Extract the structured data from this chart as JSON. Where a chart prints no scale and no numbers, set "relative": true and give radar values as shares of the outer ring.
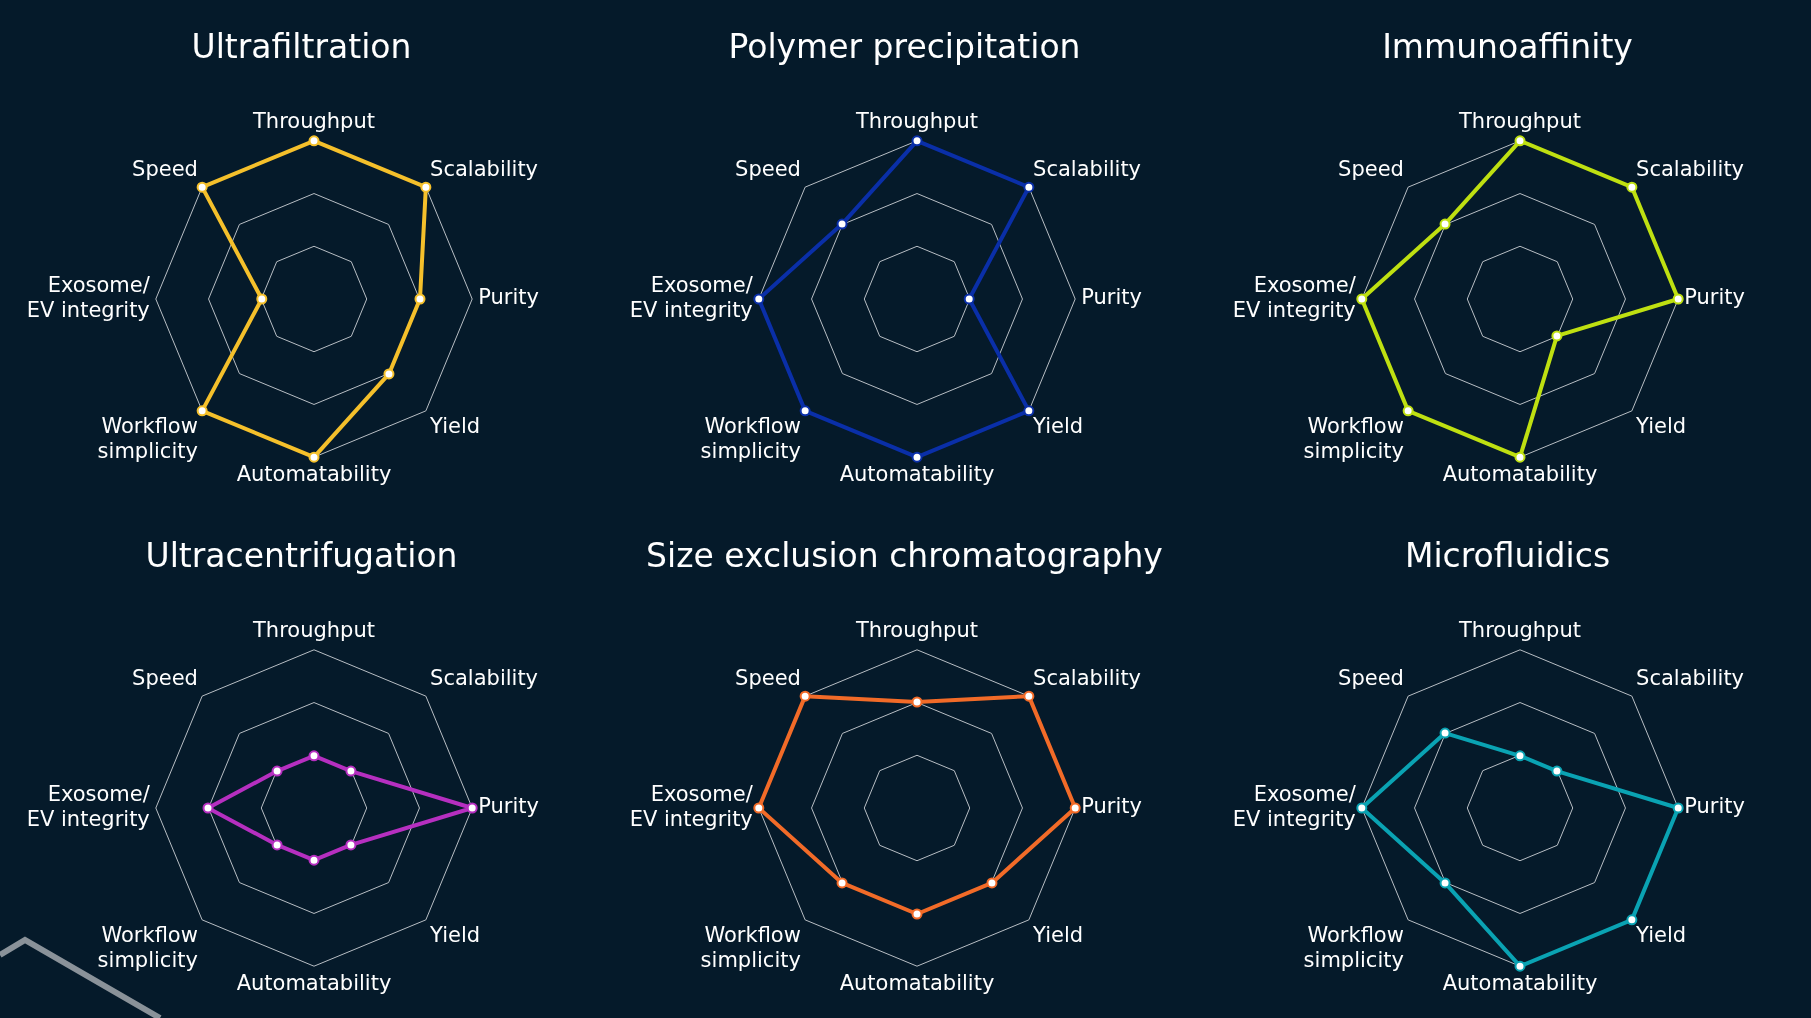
{
  "chart_data": [
    {
      "type": "radar",
      "title": "Ultrafiltration",
      "categories": [
        "Throughput",
        "Scalability",
        "Purity",
        "Yield",
        "Automatability",
        "Workflow simplicity",
        "Exosome/ EV integrity",
        "Speed"
      ],
      "relative": true,
      "grid": true,
      "legend": false,
      "marker": "circle",
      "line_style": "solid",
      "series": [
        {
          "color": "#f5c02b",
          "values": [
            1,
            1,
            0.67,
            0.67,
            1,
            1,
            0.33,
            1
          ]
        }
      ]
    },
    {
      "type": "radar",
      "title": "Polymer precipitation",
      "categories": [
        "Throughput",
        "Scalability",
        "Purity",
        "Yield",
        "Automatability",
        "Workflow simplicity",
        "Exosome/ EV integrity",
        "Speed"
      ],
      "relative": true,
      "grid": true,
      "legend": false,
      "marker": "circle",
      "line_style": "solid",
      "series": [
        {
          "color": "#0a2fa8",
          "values": [
            1,
            1,
            0.33,
            1,
            1,
            1,
            1,
            0.67
          ]
        }
      ]
    },
    {
      "type": "radar",
      "title": "Immunoaffinity",
      "categories": [
        "Throughput",
        "Scalability",
        "Purity",
        "Yield",
        "Automatability",
        "Workflow simplicity",
        "Exosome/ EV integrity",
        "Speed"
      ],
      "relative": true,
      "grid": true,
      "legend": false,
      "marker": "circle",
      "line_style": "solid",
      "series": [
        {
          "color": "#bfe011",
          "values": [
            1,
            1,
            1,
            0.33,
            1,
            1,
            1,
            0.67
          ]
        }
      ]
    },
    {
      "type": "radar",
      "title": "Ultracentrifugation",
      "categories": [
        "Throughput",
        "Scalability",
        "Purity",
        "Yield",
        "Automatability",
        "Workflow simplicity",
        "Exosome/ EV integrity",
        "Speed"
      ],
      "relative": true,
      "grid": true,
      "legend": false,
      "marker": "circle",
      "line_style": "solid",
      "series": [
        {
          "color": "#b62fc0",
          "values": [
            0.33,
            0.33,
            1,
            0.33,
            0.33,
            0.33,
            0.67,
            0.33
          ]
        }
      ]
    },
    {
      "type": "radar",
      "title": "Size exclusion chromatography",
      "categories": [
        "Throughput",
        "Scalability",
        "Purity",
        "Yield",
        "Automatability",
        "Workflow simplicity",
        "Exosome/ EV integrity",
        "Speed"
      ],
      "relative": true,
      "grid": true,
      "legend": false,
      "marker": "circle",
      "line_style": "solid",
      "series": [
        {
          "color": "#f26b28",
          "values": [
            0.67,
            1,
            1,
            0.67,
            0.67,
            0.67,
            1,
            1
          ]
        }
      ]
    },
    {
      "type": "radar",
      "title": "Microfluidics",
      "categories": [
        "Throughput",
        "Scalability",
        "Purity",
        "Yield",
        "Automatability",
        "Workflow simplicity",
        "Exosome/ EV integrity",
        "Speed"
      ],
      "relative": true,
      "grid": true,
      "legend": false,
      "marker": "circle",
      "line_style": "solid",
      "series": [
        {
          "color": "#0aa3b3",
          "values": [
            0.33,
            0.33,
            1,
            1,
            1,
            0.67,
            1,
            0.67
          ]
        }
      ]
    }
  ]
}
